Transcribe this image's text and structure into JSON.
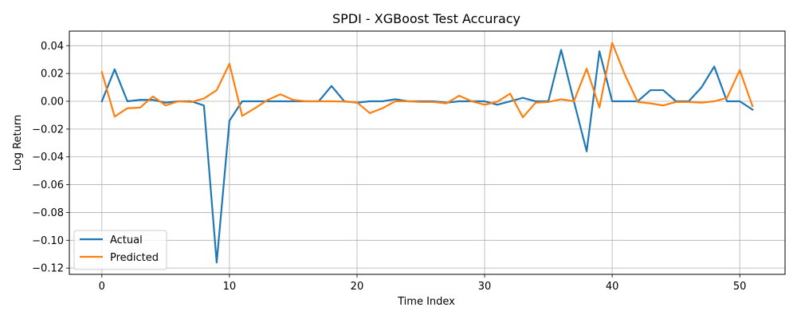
{
  "chart_data": {
    "type": "line",
    "title": "SPDI - XGBoost Test Accuracy",
    "xlabel": "Time Index",
    "ylabel": "Log Return",
    "xlim": [
      -2.55,
      53.55
    ],
    "ylim": [
      -0.1245,
      0.0505
    ],
    "xticks": [
      0,
      10,
      20,
      30,
      40,
      50
    ],
    "yticks": [
      -0.12,
      -0.1,
      -0.08,
      -0.06,
      -0.04,
      -0.02,
      0.0,
      0.02,
      0.04
    ],
    "xtick_labels": [
      "0",
      "10",
      "20",
      "30",
      "40",
      "50"
    ],
    "ytick_labels": [
      "−0.12",
      "−0.10",
      "−0.08",
      "−0.06",
      "−0.04",
      "−0.02",
      "0.00",
      "0.02",
      "0.04"
    ],
    "grid": true,
    "legend_position": "lower-left",
    "x": [
      0,
      1,
      2,
      3,
      4,
      5,
      6,
      7,
      8,
      9,
      10,
      11,
      12,
      13,
      14,
      15,
      16,
      17,
      18,
      19,
      20,
      21,
      22,
      23,
      24,
      25,
      26,
      27,
      28,
      29,
      30,
      31,
      32,
      33,
      34,
      35,
      36,
      37,
      38,
      39,
      40,
      41,
      42,
      43,
      44,
      45,
      46,
      47,
      48,
      49,
      50,
      51
    ],
    "series": [
      {
        "name": "Actual",
        "color": "#1f77b4",
        "values": [
          0.0,
          0.023,
          0.0,
          0.001,
          0.001,
          -0.001,
          0.0,
          0.0,
          -0.003,
          -0.116,
          -0.014,
          0.0,
          0.0,
          0.0,
          0.0,
          0.0,
          0.0,
          0.0,
          0.011,
          0.0,
          -0.001,
          0.0,
          0.0,
          0.0015,
          0.0,
          0.0,
          0.0,
          -0.001,
          0.0,
          0.0,
          0.0,
          -0.0025,
          0.0,
          0.0025,
          0.0,
          0.0,
          0.037,
          0.0,
          -0.036,
          0.036,
          0.0,
          0.0,
          0.0,
          0.008,
          0.008,
          0.0,
          0.0,
          0.01,
          0.025,
          0.0,
          0.0,
          -0.006
        ]
      },
      {
        "name": "Predicted",
        "color": "#ff7f0e",
        "values": [
          0.021,
          -0.011,
          -0.005,
          -0.0045,
          0.0035,
          -0.003,
          0.0,
          -0.0005,
          0.002,
          0.008,
          0.027,
          -0.0105,
          -0.005,
          0.001,
          0.005,
          0.001,
          0.0,
          0.0,
          0.0,
          -0.0002,
          -0.0008,
          -0.0085,
          -0.005,
          0.0,
          0.0,
          -0.0005,
          -0.0005,
          -0.0015,
          0.004,
          0.0,
          -0.0025,
          -0.0003,
          0.0055,
          -0.0115,
          -0.001,
          -0.0005,
          0.0015,
          0.0,
          0.0235,
          -0.0045,
          0.042,
          0.019,
          -0.0005,
          -0.0015,
          -0.003,
          -0.0005,
          -0.0005,
          -0.001,
          0.0,
          0.0025,
          0.0225,
          -0.0035
        ]
      }
    ]
  }
}
